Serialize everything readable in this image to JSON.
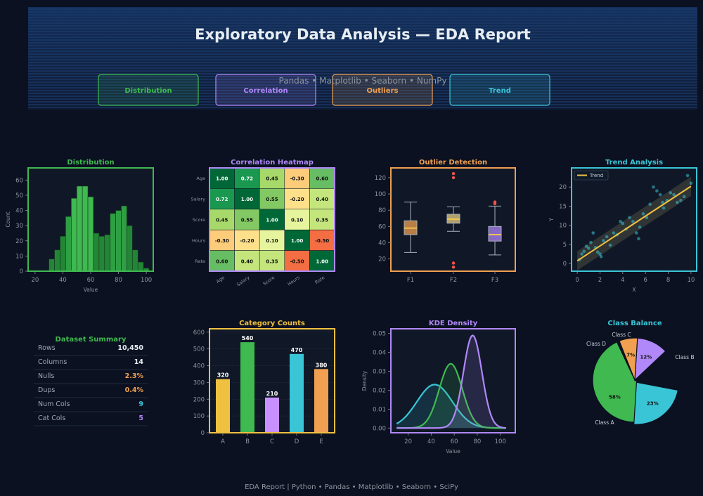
{
  "header": {
    "title": "Exploratory Data Analysis  —  EDA Report",
    "subtitle": "Pandas  •  Matplotlib  •  Seaborn  •  NumPy"
  },
  "badges": [
    {
      "label": "Distribution",
      "color": "#3fb950"
    },
    {
      "label": "Correlation",
      "color": "#b088f9"
    },
    {
      "label": "Outliers",
      "color": "#f0a050"
    },
    {
      "label": "Trend",
      "color": "#39c5d6"
    }
  ],
  "footer": "EDA Report  |  Python  •  Pandas  •  Matplotlib  •  Seaborn  •  SciPy",
  "colors": {
    "green": "#3fb950",
    "purple": "#b088f9",
    "orange": "#f0a050",
    "cyan": "#39c5d6",
    "yellow": "#f0c040",
    "panel": "#101827",
    "text": "#8b949e"
  },
  "summary": {
    "title": "Dataset Summary",
    "rows": [
      {
        "label": "Rows",
        "value": "10,450",
        "color": "#e6edf3"
      },
      {
        "label": "Columns",
        "value": "14",
        "color": "#e6edf3"
      },
      {
        "label": "Nulls",
        "value": "2.3%",
        "color": "#f0a050"
      },
      {
        "label": "Dups",
        "value": "0.4%",
        "color": "#f0a050"
      },
      {
        "label": "Num Cols",
        "value": "9",
        "color": "#39c5d6"
      },
      {
        "label": "Cat Cols",
        "value": "5",
        "color": "#b088f9"
      }
    ]
  },
  "chart_data": [
    {
      "type": "bar",
      "title": "Distribution",
      "xlabel": "Value",
      "ylabel": "Count",
      "xlim": [
        15,
        105
      ],
      "ylim": [
        0,
        68
      ],
      "xticks": [
        20,
        40,
        60,
        80,
        100
      ],
      "yticks": [
        0,
        10,
        20,
        30,
        40,
        50,
        60
      ],
      "bin_width": 4,
      "bins": [
        30,
        34,
        38,
        42,
        46,
        50,
        54,
        58,
        62,
        66,
        70,
        74,
        78,
        82,
        86,
        90,
        94,
        98
      ],
      "values": [
        8,
        14,
        23,
        36,
        48,
        56,
        56,
        49,
        25,
        23,
        24,
        38,
        40,
        43,
        30,
        14,
        6,
        2
      ]
    },
    {
      "type": "heatmap",
      "title": "Correlation Heatmap",
      "labels": [
        "Age",
        "Salary",
        "Score",
        "Hours",
        "Rate"
      ],
      "matrix": [
        [
          1.0,
          0.72,
          0.45,
          -0.3,
          0.6
        ],
        [
          0.72,
          1.0,
          0.55,
          -0.2,
          0.4
        ],
        [
          0.45,
          0.55,
          1.0,
          0.1,
          0.35
        ],
        [
          -0.3,
          -0.2,
          0.1,
          1.0,
          -0.5
        ],
        [
          0.6,
          0.4,
          0.35,
          -0.5,
          1.0
        ]
      ]
    },
    {
      "type": "box",
      "title": "Outlier Detection",
      "categories": [
        "F1",
        "F2",
        "F3"
      ],
      "ylim": [
        5,
        132
      ],
      "yticks": [
        20,
        40,
        60,
        80,
        100,
        120
      ],
      "boxes": [
        {
          "whislo": 28,
          "q1": 50,
          "med": 58,
          "q3": 67,
          "whishi": 90,
          "fliers": []
        },
        {
          "whislo": 54,
          "q1": 64,
          "med": 69,
          "q3": 75,
          "whishi": 84,
          "fliers": [
            10,
            15,
            120,
            125
          ]
        },
        {
          "whislo": 25,
          "q1": 42,
          "med": 50,
          "q3": 60,
          "whishi": 85,
          "fliers": [
            88,
            90
          ]
        }
      ],
      "colors": [
        "#f0a050",
        "#e6d08a",
        "#b088f9"
      ]
    },
    {
      "type": "scatter",
      "title": "Trend Analysis",
      "xlabel": "X",
      "ylabel": "Y",
      "xlim": [
        -0.5,
        10.5
      ],
      "ylim": [
        -2,
        25
      ],
      "xticks": [
        0,
        2,
        4,
        6,
        8,
        10
      ],
      "yticks": [
        0,
        5,
        10,
        15,
        20
      ],
      "legend": "Trend",
      "trend": {
        "slope": 1.95,
        "intercept": 0.7
      },
      "x": [
        0.2,
        0.4,
        0.6,
        0.8,
        1.0,
        1.2,
        1.4,
        1.6,
        1.8,
        2.0,
        2.3,
        2.6,
        2.9,
        3.2,
        3.5,
        3.8,
        4.0,
        4.3,
        4.6,
        4.9,
        5.2,
        5.5,
        5.8,
        6.1,
        6.4,
        6.7,
        7.0,
        7.3,
        7.6,
        7.9,
        8.2,
        8.5,
        8.8,
        9.1,
        9.4,
        9.7,
        10.0,
        2.1,
        5.4,
        7.5
      ],
      "y": [
        1.0,
        2.5,
        3.2,
        4.5,
        4.0,
        5.5,
        8.0,
        4.2,
        3.0,
        2.5,
        6.0,
        7.0,
        4.8,
        8.0,
        7.5,
        11.0,
        10.5,
        9.0,
        12.0,
        11.0,
        8.0,
        9.5,
        13.0,
        12.0,
        15.5,
        20.0,
        19.0,
        18.0,
        14.5,
        16.5,
        18.5,
        18.0,
        16.0,
        16.5,
        17.5,
        23.0,
        21.0,
        1.8,
        6.5,
        16.0
      ]
    },
    {
      "type": "bar",
      "title": "Category Counts",
      "categories": [
        "A",
        "B",
        "C",
        "D",
        "E"
      ],
      "values": [
        320,
        540,
        210,
        470,
        380
      ],
      "colors": [
        "#f0c040",
        "#3fb950",
        "#c890ff",
        "#39c5d6",
        "#f0a050"
      ],
      "ylim": [
        0,
        620
      ],
      "yticks": [
        0,
        100,
        200,
        300,
        400,
        500,
        600
      ]
    },
    {
      "type": "area",
      "title": "KDE Density",
      "xlabel": "Value",
      "ylabel": "Density",
      "xlim": [
        5,
        113
      ],
      "ylim": [
        -0.0025,
        0.0525
      ],
      "xticks": [
        20,
        40,
        60,
        80,
        100
      ],
      "yticks": [
        0.0,
        0.01,
        0.02,
        0.03,
        0.04,
        0.05
      ],
      "series": [
        {
          "mean": 43,
          "sd": 15.4,
          "peak": 0.023,
          "color": "#39c5d6"
        },
        {
          "mean": 57,
          "sd": 10,
          "peak": 0.034,
          "color": "#3fb950"
        },
        {
          "mean": 76,
          "sd": 8,
          "peak": 0.049,
          "color": "#b088f9"
        }
      ]
    },
    {
      "type": "pie",
      "title": "Class Balance",
      "labels": [
        "Class A",
        "Class B",
        "Class C",
        "Class D"
      ],
      "values": [
        58,
        23,
        12,
        7
      ],
      "colors": [
        "#3fb950",
        "#39c5d6",
        "#b088f9",
        "#f0a050"
      ]
    }
  ]
}
